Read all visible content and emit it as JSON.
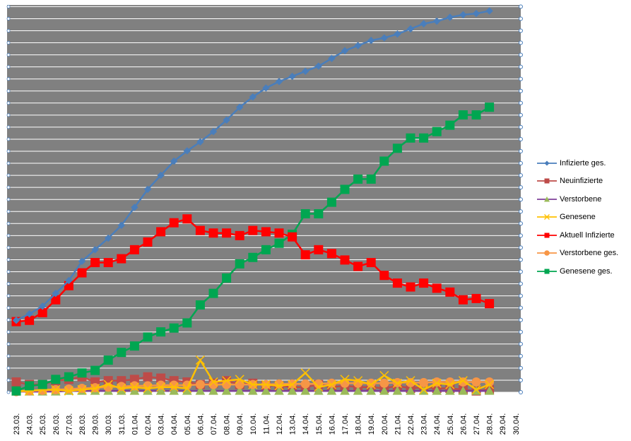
{
  "chart_data": {
    "type": "line",
    "categories": [
      "23.03.",
      "24.03.",
      "25.03.",
      "26.03.",
      "27.03.",
      "28.03.",
      "29.03.",
      "30.03.",
      "31.03.",
      "01.04.",
      "02.04.",
      "03.04.",
      "04.04.",
      "05.04.",
      "06.04.",
      "07.04.",
      "08.04.",
      "09.04.",
      "10.04.",
      "11.04.",
      "12.04.",
      "13.04.",
      "14.04.",
      "15.04.",
      "16.04.",
      "17.04.",
      "18.04.",
      "19.04.",
      "20.04.",
      "21.04.",
      "22.04.",
      "23.04.",
      "24.04.",
      "25.04.",
      "26.04.",
      "27.04.",
      "28.04.",
      "29.04.",
      "30.04."
    ],
    "ylim": [
      0,
      30
    ],
    "grid": true,
    "legend_position": "right",
    "series": [
      {
        "name": "Infizierte ges.",
        "color": "#4a7ebb",
        "marker": "diamond",
        "values": [
          5.6,
          6.1,
          6.7,
          7.7,
          8.7,
          10.2,
          11.1,
          12.0,
          13.0,
          14.4,
          15.8,
          16.9,
          18.0,
          18.8,
          19.5,
          20.3,
          21.2,
          22.2,
          23.0,
          23.7,
          24.2,
          24.6,
          25.0,
          25.4,
          26.0,
          26.6,
          27.0,
          27.4,
          27.6,
          27.9,
          28.3,
          28.7,
          28.9,
          29.2,
          29.4,
          29.5,
          29.7,
          null,
          null
        ]
      },
      {
        "name": "Neuinfizierte",
        "color": "#be4b48",
        "marker": "square",
        "values": [
          0.8,
          0.6,
          0.6,
          0.9,
          1.0,
          1.2,
          0.8,
          0.9,
          0.9,
          1.0,
          1.2,
          1.1,
          0.9,
          0.8,
          0.6,
          0.7,
          0.9,
          0.6,
          0.7,
          0.5,
          0.5,
          0.4,
          0.4,
          0.6,
          0.4,
          0.5,
          0.4,
          0.4,
          0.3,
          0.5,
          0.3,
          0.4,
          0.3,
          0.3,
          0.2,
          0.1,
          0.2,
          null,
          null
        ]
      },
      {
        "name": "Verstorbene",
        "color": "#7e3f98",
        "marker": "triangle",
        "values": [
          0.05,
          0.05,
          0.05,
          0.05,
          0.1,
          0.1,
          0.1,
          0.1,
          0.1,
          0.1,
          0.1,
          0.1,
          0.1,
          0.1,
          0.1,
          0.1,
          0.1,
          0.1,
          0.1,
          0.1,
          0.1,
          0.1,
          0.1,
          0.1,
          0.1,
          0.1,
          0.1,
          0.1,
          0.1,
          0.1,
          0.1,
          0.1,
          0.1,
          0.1,
          0.1,
          0.1,
          0.1,
          null,
          null
        ]
      },
      {
        "name": "Genesene",
        "color": "#ffc000",
        "marker": "x",
        "values": [
          0.1,
          0.1,
          0.2,
          0.2,
          0.1,
          0.2,
          0.3,
          0.6,
          0.3,
          0.4,
          0.3,
          0.4,
          0.4,
          0.3,
          2.5,
          0.8,
          0.9,
          1.0,
          0.6,
          0.6,
          0.5,
          0.6,
          1.5,
          0.4,
          0.6,
          1.0,
          0.9,
          0.6,
          1.3,
          0.7,
          0.9,
          0.2,
          0.7,
          0.6,
          0.9,
          0.2,
          0.6,
          null,
          null
        ]
      },
      {
        "name": "Aktuell Infizierte",
        "color": "#ff0000",
        "marker": "square",
        "values": [
          5.5,
          5.6,
          6.2,
          7.2,
          8.3,
          9.3,
          10.1,
          10.1,
          10.4,
          11.1,
          11.7,
          12.5,
          13.2,
          13.5,
          12.6,
          12.4,
          12.4,
          12.2,
          12.6,
          12.5,
          12.4,
          12.1,
          10.7,
          11.1,
          10.8,
          10.3,
          9.8,
          10.1,
          9.1,
          8.5,
          8.2,
          8.5,
          8.1,
          7.8,
          7.2,
          7.3,
          6.9,
          null,
          null
        ]
      },
      {
        "name": "Verstorbene ges.",
        "color": "#f79646",
        "marker": "circle",
        "values": [
          0.05,
          0.1,
          0.15,
          0.2,
          0.25,
          0.3,
          0.35,
          0.4,
          0.45,
          0.5,
          0.5,
          0.55,
          0.55,
          0.55,
          0.6,
          0.6,
          0.6,
          0.6,
          0.6,
          0.6,
          0.65,
          0.65,
          0.65,
          0.65,
          0.7,
          0.7,
          0.7,
          0.7,
          0.7,
          0.75,
          0.75,
          0.75,
          0.8,
          0.8,
          0.8,
          0.8,
          0.8,
          null,
          null
        ]
      },
      {
        "name": "Genesene ges.",
        "color": "#00a651",
        "marker": "square",
        "values": [
          0.1,
          0.5,
          0.6,
          1.0,
          1.2,
          1.5,
          1.7,
          2.5,
          3.1,
          3.6,
          4.3,
          4.7,
          5.0,
          5.4,
          6.8,
          7.7,
          8.9,
          10.0,
          10.5,
          11.1,
          11.6,
          12.3,
          13.9,
          13.9,
          14.8,
          15.8,
          16.6,
          16.6,
          18.0,
          19.0,
          19.8,
          19.8,
          20.3,
          20.8,
          21.6,
          21.6,
          22.2,
          null,
          null
        ]
      }
    ]
  }
}
